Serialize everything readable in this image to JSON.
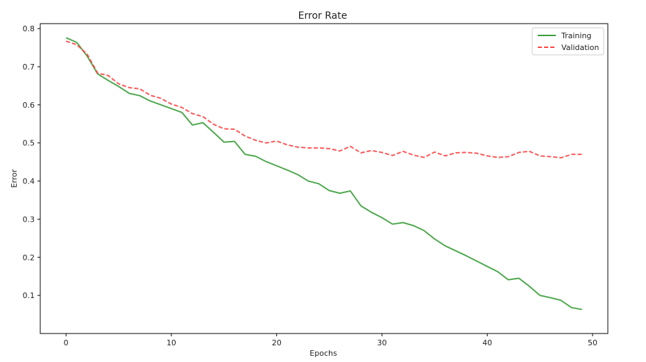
{
  "chart_data": {
    "type": "line",
    "title": "Error Rate",
    "xlabel": "Epochs",
    "ylabel": "Error",
    "xlim": [
      -2.45,
      51.45
    ],
    "ylim": [
      0.0,
      0.813
    ],
    "xticks": [
      0,
      10,
      20,
      30,
      40,
      50
    ],
    "yticks": [
      0.1,
      0.2,
      0.3,
      0.4,
      0.5,
      0.6,
      0.7,
      0.8
    ],
    "xtick_labels": [
      "0",
      "10",
      "20",
      "30",
      "40",
      "50"
    ],
    "ytick_labels": [
      "0.1",
      "0.2",
      "0.3",
      "0.4",
      "0.5",
      "0.6",
      "0.7",
      "0.8"
    ],
    "grid": false,
    "legend_position": "top-right",
    "x": [
      0,
      1,
      2,
      3,
      4,
      5,
      6,
      7,
      8,
      9,
      10,
      11,
      12,
      13,
      14,
      15,
      16,
      17,
      18,
      19,
      20,
      21,
      22,
      23,
      24,
      25,
      26,
      27,
      28,
      29,
      30,
      31,
      32,
      33,
      34,
      35,
      36,
      37,
      38,
      39,
      40,
      41,
      42,
      43,
      44,
      45,
      46,
      47,
      48,
      49
    ],
    "series": [
      {
        "name": "Training",
        "color": "#3a9e3a",
        "style": "solid",
        "values": [
          0.776,
          0.764,
          0.728,
          0.681,
          0.664,
          0.648,
          0.63,
          0.624,
          0.61,
          0.6,
          0.59,
          0.58,
          0.547,
          0.553,
          0.528,
          0.502,
          0.504,
          0.47,
          0.465,
          0.451,
          0.44,
          0.429,
          0.417,
          0.4,
          0.393,
          0.375,
          0.368,
          0.374,
          0.335,
          0.318,
          0.304,
          0.287,
          0.291,
          0.283,
          0.27,
          0.248,
          0.23,
          0.217,
          0.204,
          0.19,
          0.176,
          0.162,
          0.141,
          0.145,
          0.124,
          0.1,
          0.094,
          0.087,
          0.068,
          0.063
        ]
      },
      {
        "name": "Validation",
        "color": "#ff4444",
        "style": "dashed",
        "values": [
          0.767,
          0.758,
          0.733,
          0.683,
          0.677,
          0.655,
          0.645,
          0.642,
          0.625,
          0.617,
          0.602,
          0.593,
          0.577,
          0.569,
          0.549,
          0.537,
          0.536,
          0.518,
          0.507,
          0.5,
          0.505,
          0.495,
          0.489,
          0.487,
          0.487,
          0.485,
          0.479,
          0.491,
          0.474,
          0.48,
          0.475,
          0.467,
          0.478,
          0.468,
          0.462,
          0.476,
          0.466,
          0.474,
          0.475,
          0.473,
          0.466,
          0.462,
          0.464,
          0.475,
          0.478,
          0.466,
          0.464,
          0.461,
          0.47,
          0.47
        ]
      }
    ]
  }
}
